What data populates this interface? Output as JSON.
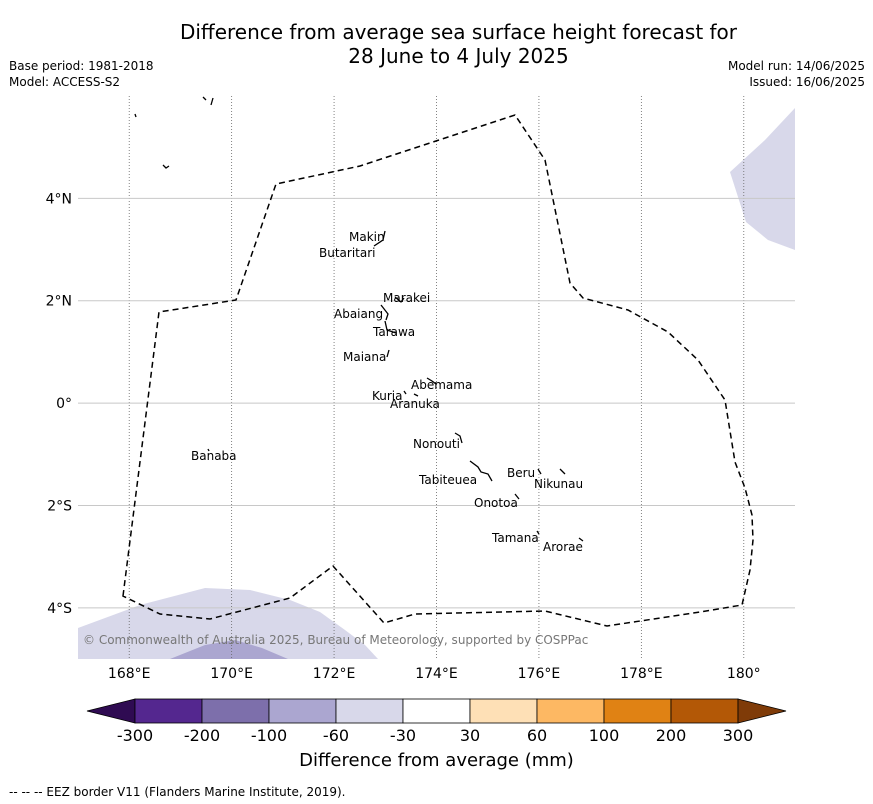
{
  "title": {
    "line1": "Difference from average sea surface height forecast for",
    "line2": "28 June to 4 July 2025"
  },
  "meta_left": {
    "base_period": "Base period: 1981-2018",
    "model": "Model: ACCESS-S2"
  },
  "meta_right": {
    "model_run": "Model run: 14/06/2025",
    "issued": "Issued: 16/06/2025"
  },
  "map": {
    "lon_labels": [
      "168°E",
      "170°E",
      "172°E",
      "174°E",
      "176°E",
      "178°E",
      "180°"
    ],
    "lat_labels": [
      "4°N",
      "2°N",
      "0°",
      "2°S",
      "4°S"
    ],
    "lon_values": [
      168,
      170,
      172,
      174,
      176,
      178,
      180
    ],
    "lat_values": [
      4,
      2,
      0,
      -2,
      -4
    ],
    "extent": {
      "lon_min": 167,
      "lon_max": 181,
      "lat_min": -5,
      "lat_max": 6
    },
    "copyright": "© Commonwealth of Australia 2025, Bureau of Meteorology, supported by COSPPac",
    "islands": [
      {
        "name": "Makin",
        "lon": 172.95,
        "lat": 3.2
      },
      {
        "name": "Butaritari",
        "lon": 172.85,
        "lat": 3.05
      },
      {
        "name": "Marakei",
        "lon": 173.3,
        "lat": 2.0
      },
      {
        "name": "Abaiang",
        "lon": 172.9,
        "lat": 1.8
      },
      {
        "name": "Tarawa",
        "lon": 173.0,
        "lat": 1.45
      },
      {
        "name": "Maiana",
        "lon": 173.0,
        "lat": 0.95
      },
      {
        "name": "Abemama",
        "lon": 173.85,
        "lat": 0.45
      },
      {
        "name": "Kuria",
        "lon": 173.4,
        "lat": 0.2
      },
      {
        "name": "Aranuka",
        "lon": 173.6,
        "lat": 0.15
      },
      {
        "name": "Nonouti",
        "lon": 174.4,
        "lat": -0.7
      },
      {
        "name": "Banaba",
        "lon": 169.53,
        "lat": -0.86
      },
      {
        "name": "Tabiteuea",
        "lon": 174.85,
        "lat": -1.3
      },
      {
        "name": "Beru",
        "lon": 176.0,
        "lat": -1.35
      },
      {
        "name": "Nikunau",
        "lon": 176.45,
        "lat": -1.4
      },
      {
        "name": "Onotoa",
        "lon": 175.55,
        "lat": -1.85
      },
      {
        "name": "Tamana",
        "lon": 175.98,
        "lat": -2.5
      },
      {
        "name": "Arorae",
        "lon": 176.82,
        "lat": -2.65
      }
    ]
  },
  "colorbar": {
    "title": "Difference from average (mm)",
    "tick_labels": [
      "-300",
      "-200",
      "-100",
      "-60",
      "-30",
      "30",
      "60",
      "100",
      "200",
      "300"
    ],
    "colors": [
      "#2f0b52",
      "#54278f",
      "#7d6fab",
      "#aba6d0",
      "#d8d8ea",
      "#ffffff",
      "#fee0b6",
      "#fdb863",
      "#e08214",
      "#b35806",
      "#7f3b08"
    ]
  },
  "footnote": "--  --  -- EEZ border V11 (Flanders Marine Institute, 2019)."
}
